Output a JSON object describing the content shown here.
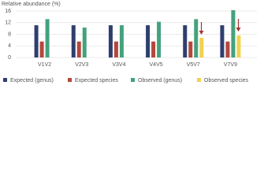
{
  "chart_data": {
    "type": "bar",
    "title": "Relative abundance (%)",
    "categories": [
      "V1V2",
      "V2V3",
      "V3V4",
      "V4V5",
      "V5V7",
      "V7V9"
    ],
    "series": [
      {
        "name": "Expected (genus)",
        "color": "#2e3f6e",
        "values": [
          11.1,
          11.1,
          11.1,
          11.1,
          11.1,
          11.1
        ]
      },
      {
        "name": "Expected species",
        "color": "#b4473b",
        "values": [
          5.5,
          5.5,
          5.5,
          5.5,
          5.5,
          5.5
        ]
      },
      {
        "name": "Observed (genus)",
        "color": "#43a27c",
        "values": [
          13.2,
          10.3,
          11.1,
          12.3,
          13.2,
          16.3
        ]
      },
      {
        "name": "Observed species",
        "color": "#f2d24e",
        "values": [
          null,
          null,
          null,
          null,
          6.8,
          7.6
        ]
      }
    ],
    "ylim": [
      0,
      16
    ],
    "yticks": [
      0,
      4,
      8,
      12,
      16
    ],
    "grid": true
  }
}
